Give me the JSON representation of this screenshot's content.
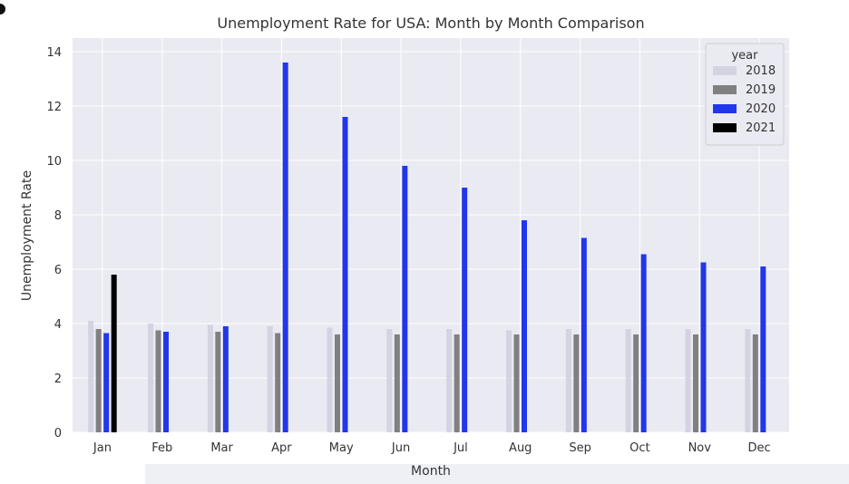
{
  "chart_data": {
    "type": "bar",
    "title": "Unemployment Rate for USA: Month by Month Comparison",
    "xlabel": "Month",
    "ylabel": "Unemployment Rate",
    "categories": [
      "Jan",
      "Feb",
      "Mar",
      "Apr",
      "May",
      "Jun",
      "Jul",
      "Aug",
      "Sep",
      "Oct",
      "Nov",
      "Dec"
    ],
    "ylim": [
      0,
      14.5
    ],
    "yticks": [
      0,
      2,
      4,
      6,
      8,
      10,
      12,
      14
    ],
    "grid": true,
    "legend": {
      "title": "year",
      "placement": "top-right"
    },
    "series": [
      {
        "name": "2018",
        "color": "#d3d3e2",
        "values": [
          4.1,
          4.0,
          3.95,
          3.9,
          3.85,
          3.8,
          3.8,
          3.75,
          3.8,
          3.8,
          3.8,
          3.8
        ]
      },
      {
        "name": "2019",
        "color": "#808080",
        "values": [
          3.8,
          3.75,
          3.7,
          3.65,
          3.6,
          3.6,
          3.6,
          3.6,
          3.6,
          3.6,
          3.6,
          3.6
        ]
      },
      {
        "name": "2020",
        "color": "#2137ea",
        "values": [
          3.65,
          3.7,
          3.9,
          13.6,
          11.6,
          9.8,
          9.0,
          7.8,
          7.15,
          6.55,
          6.25,
          6.1
        ]
      },
      {
        "name": "2021",
        "color": "#000000",
        "values": [
          5.8,
          null,
          null,
          null,
          null,
          null,
          null,
          null,
          null,
          null,
          null,
          null
        ]
      }
    ]
  }
}
